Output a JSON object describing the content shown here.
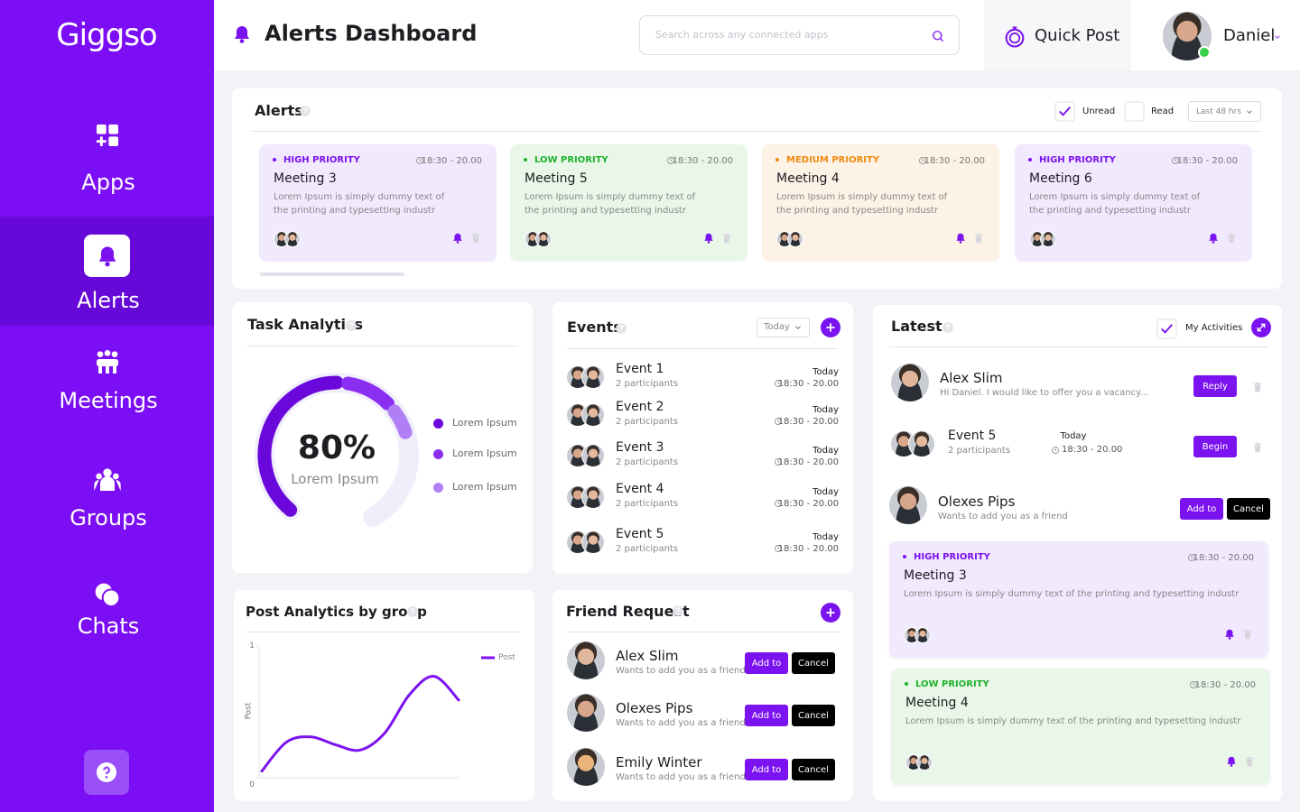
{
  "sidebar": {
    "logo": "Giggso",
    "nav": [
      "Apps",
      "Alerts",
      "Meetings",
      "Groups",
      "Chats"
    ]
  },
  "header": {
    "title": "Alerts Dashboard",
    "search_placeholder": "Search across any connected apps",
    "quick_post": "Quick Post",
    "user": "Daniel"
  },
  "alerts": {
    "title": "Alerts",
    "unread": "Unread",
    "read": "Read",
    "range": "Last 48 hrs",
    "cards": [
      {
        "priority": "HIGH PRIORITY",
        "time": "18:30 - 20.00",
        "title": "Meeting 3",
        "text": "Lorem Ipsum is simply dummy text of the printing and typesetting industr"
      },
      {
        "priority": "LOW PRIORITY",
        "time": "18:30 - 20.00",
        "title": "Meeting 5",
        "text": "Lorem Ipsum is simply dummy text of the printing and typesetting industr"
      },
      {
        "priority": "MEDIUM PRIORITY",
        "time": "18:30 - 20.00",
        "title": "Meeting 4",
        "text": "Lorem Ipsum is simply dummy text of the printing and typesetting industr"
      },
      {
        "priority": "HIGH PRIORITY",
        "time": "18:30 - 20.00",
        "title": "Meeting 6",
        "text": "Lorem Ipsum is simply dummy text of the printing and typesetting industr"
      }
    ]
  },
  "task_analytics": {
    "title": "Task Analytics",
    "percent": "80%",
    "caption": "Lorem Ipsum",
    "legend": [
      "Lorem Ipsum",
      "Lorem Ipsum",
      "Lorem Ipsum"
    ]
  },
  "post_analytics": {
    "title": "Post Analytics by group",
    "chart": {
      "type": "line",
      "ylabel": "Post",
      "ylim": [
        0,
        1
      ],
      "yticks": [
        0,
        1
      ],
      "series": [
        {
          "name": "Post",
          "color": "#7b12f0",
          "values": [
            0.05,
            0.27,
            0.31,
            0.25,
            0.21,
            0.34,
            0.63,
            0.77,
            0.59
          ]
        }
      ]
    }
  },
  "events": {
    "title": "Events",
    "filter": "Today",
    "items": [
      {
        "name": "Event 1",
        "participants": "2 participants",
        "day": "Today",
        "time": "18:30 - 20.00"
      },
      {
        "name": "Event 2",
        "participants": "2 participants",
        "day": "Today",
        "time": "18:30 - 20.00"
      },
      {
        "name": "Event 3",
        "participants": "2 participants",
        "day": "Today",
        "time": "18:30 - 20.00"
      },
      {
        "name": "Event 4",
        "participants": "2 participants",
        "day": "Today",
        "time": "18:30 - 20.00"
      },
      {
        "name": "Event 5",
        "participants": "2 participants",
        "day": "Today",
        "time": "18:30 - 20.00"
      }
    ]
  },
  "friend_request": {
    "title": "Friend Request",
    "items": [
      {
        "name": "Alex Slim",
        "text": "Wants to add you as a friend",
        "accept": "Add to",
        "reject": "Cancel"
      },
      {
        "name": "Olexes Pips",
        "text": "Wants to add you as a friend",
        "accept": "Add to",
        "reject": "Cancel"
      },
      {
        "name": "Emily Winter",
        "text": "Wants to add you as a friend",
        "accept": "Add to",
        "reject": "Cancel"
      }
    ]
  },
  "latest": {
    "title": "Latest",
    "filter": "My Activities",
    "message": {
      "name": "Alex Slim",
      "text": "Hi Daniel. I would like to offer you a vacancy...",
      "action": "Reply"
    },
    "event": {
      "name": "Event 5",
      "participants": "2 participants",
      "day": "Today",
      "time": "18:30 - 20.00",
      "action": "Begin"
    },
    "friend": {
      "name": "Olexes Pips",
      "text": "Wants to add you as a friend",
      "accept": "Add to",
      "reject": "Cancel"
    },
    "cards": [
      {
        "priority": "HIGH PRIORITY",
        "time": "18:30 - 20.00",
        "title": "Meeting 3",
        "text": "Lorem Ipsum is simply dummy text of the printing and typesetting industr"
      },
      {
        "priority": "LOW PRIORITY",
        "time": "18:30 - 20.00",
        "title": "Meeting 4",
        "text": "Lorem Ipsum is simply dummy text of the printing and typesetting industr"
      }
    ]
  }
}
